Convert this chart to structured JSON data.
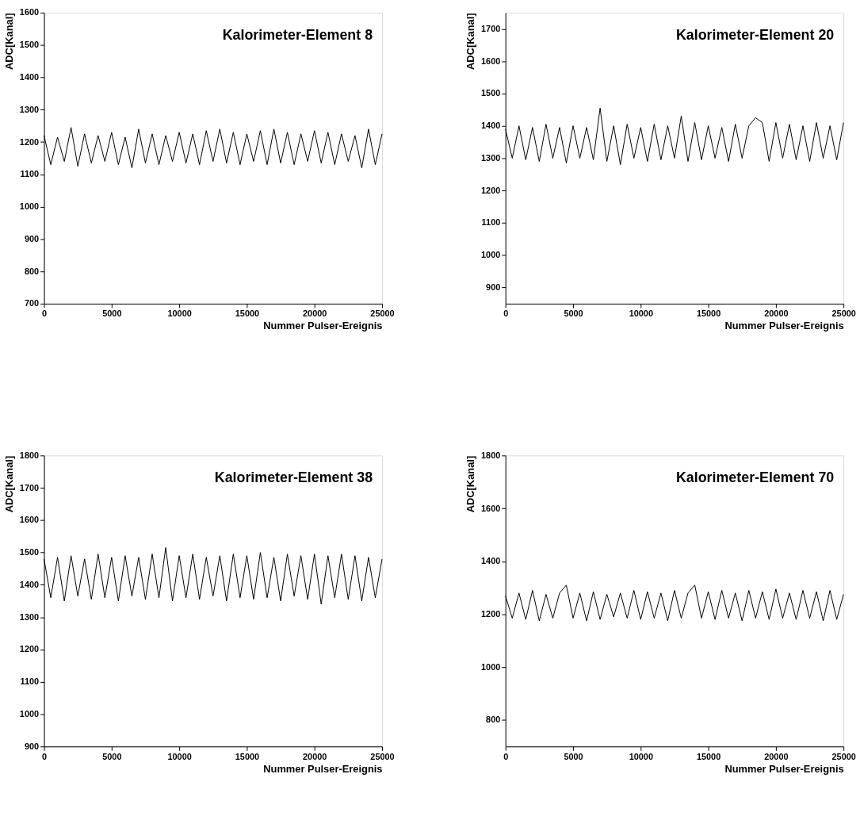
{
  "chart_data": [
    {
      "type": "line",
      "title": "Kalorimeter-Element 8",
      "xlabel": "Nummer Pulser-Ereignis",
      "ylabel": "ADC[Kanal]",
      "xlim": [
        0,
        25000
      ],
      "ylim": [
        700,
        1600
      ],
      "xticks": [
        0,
        5000,
        10000,
        15000,
        20000,
        25000
      ],
      "yticks": [
        700,
        800,
        900,
        1000,
        1100,
        1200,
        1300,
        1400,
        1500,
        1600
      ],
      "grid": false,
      "x": [
        0,
        500,
        1000,
        1500,
        2000,
        2500,
        3000,
        3500,
        4000,
        4500,
        5000,
        5500,
        6000,
        6500,
        7000,
        7500,
        8000,
        8500,
        9000,
        9500,
        10000,
        10500,
        11000,
        11500,
        12000,
        12500,
        13000,
        13500,
        14000,
        14500,
        15000,
        15500,
        16000,
        16500,
        17000,
        17500,
        18000,
        18500,
        19000,
        19500,
        20000,
        20500,
        21000,
        21500,
        22000,
        22500,
        23000,
        23500,
        24000,
        24500,
        25000
      ],
      "series": [
        {
          "color": "#000000",
          "values": [
            1220,
            1130,
            1215,
            1140,
            1245,
            1125,
            1225,
            1135,
            1220,
            1140,
            1230,
            1130,
            1215,
            1120,
            1240,
            1135,
            1225,
            1130,
            1220,
            1140,
            1230,
            1135,
            1225,
            1130,
            1235,
            1140,
            1240,
            1135,
            1230,
            1130,
            1225,
            1140,
            1235,
            1130,
            1240,
            1135,
            1230,
            1130,
            1225,
            1140,
            1235,
            1135,
            1230,
            1130,
            1225,
            1140,
            1220,
            1120,
            1240,
            1130,
            1225
          ]
        }
      ]
    },
    {
      "type": "line",
      "title": "Kalorimeter-Element 20",
      "xlabel": "Nummer Pulser-Ereignis",
      "ylabel": "ADC[Kanal]",
      "xlim": [
        0,
        25000
      ],
      "ylim": [
        850,
        1750
      ],
      "xticks": [
        0,
        5000,
        10000,
        15000,
        20000,
        25000
      ],
      "yticks": [
        900,
        1000,
        1100,
        1200,
        1300,
        1400,
        1500,
        1600,
        1700
      ],
      "grid": false,
      "x": [
        0,
        500,
        1000,
        1500,
        2000,
        2500,
        3000,
        3500,
        4000,
        4500,
        5000,
        5500,
        6000,
        6500,
        7000,
        7500,
        8000,
        8500,
        9000,
        9500,
        10000,
        10500,
        11000,
        11500,
        12000,
        12500,
        13000,
        13500,
        14000,
        14500,
        15000,
        15500,
        16000,
        16500,
        17000,
        17500,
        18000,
        18500,
        19000,
        19500,
        20000,
        20500,
        21000,
        21500,
        22000,
        22500,
        23000,
        23500,
        24000,
        24500,
        25000
      ],
      "series": [
        {
          "color": "#000000",
          "values": [
            1390,
            1300,
            1400,
            1295,
            1395,
            1290,
            1405,
            1300,
            1395,
            1285,
            1400,
            1300,
            1395,
            1295,
            1455,
            1290,
            1400,
            1280,
            1405,
            1300,
            1395,
            1290,
            1405,
            1295,
            1400,
            1300,
            1430,
            1290,
            1410,
            1295,
            1400,
            1300,
            1395,
            1290,
            1405,
            1300,
            1400,
            1425,
            1410,
            1290,
            1410,
            1300,
            1405,
            1295,
            1400,
            1290,
            1410,
            1300,
            1400,
            1295,
            1410
          ]
        }
      ]
    },
    {
      "type": "line",
      "title": "Kalorimeter-Element 38",
      "xlabel": "Nummer Pulser-Ereignis",
      "ylabel": "ADC[Kanal]",
      "xlim": [
        0,
        25000
      ],
      "ylim": [
        900,
        1800
      ],
      "xticks": [
        0,
        5000,
        10000,
        15000,
        20000,
        25000
      ],
      "yticks": [
        900,
        1000,
        1100,
        1200,
        1300,
        1400,
        1500,
        1600,
        1700,
        1800
      ],
      "grid": false,
      "x": [
        0,
        500,
        1000,
        1500,
        2000,
        2500,
        3000,
        3500,
        4000,
        4500,
        5000,
        5500,
        6000,
        6500,
        7000,
        7500,
        8000,
        8500,
        9000,
        9500,
        10000,
        10500,
        11000,
        11500,
        12000,
        12500,
        13000,
        13500,
        14000,
        14500,
        15000,
        15500,
        16000,
        16500,
        17000,
        17500,
        18000,
        18500,
        19000,
        19500,
        20000,
        20500,
        21000,
        21500,
        22000,
        22500,
        23000,
        23500,
        24000,
        24500,
        25000
      ],
      "series": [
        {
          "color": "#000000",
          "values": [
            1480,
            1360,
            1485,
            1350,
            1490,
            1365,
            1480,
            1355,
            1495,
            1360,
            1485,
            1350,
            1490,
            1365,
            1485,
            1355,
            1495,
            1360,
            1515,
            1350,
            1490,
            1360,
            1495,
            1355,
            1485,
            1365,
            1490,
            1350,
            1495,
            1360,
            1490,
            1355,
            1500,
            1360,
            1485,
            1350,
            1495,
            1365,
            1490,
            1355,
            1495,
            1340,
            1490,
            1360,
            1495,
            1355,
            1490,
            1350,
            1485,
            1360,
            1480
          ]
        }
      ]
    },
    {
      "type": "line",
      "title": "Kalorimeter-Element 70",
      "xlabel": "Nummer Pulser-Ereignis",
      "ylabel": "ADC[Kanal]",
      "xlim": [
        0,
        25000
      ],
      "ylim": [
        700,
        1800
      ],
      "xticks": [
        0,
        5000,
        10000,
        15000,
        20000,
        25000
      ],
      "yticks": [
        800,
        1000,
        1200,
        1400,
        1600,
        1800
      ],
      "grid": false,
      "x": [
        0,
        500,
        1000,
        1500,
        2000,
        2500,
        3000,
        3500,
        4000,
        4500,
        5000,
        5500,
        6000,
        6500,
        7000,
        7500,
        8000,
        8500,
        9000,
        9500,
        10000,
        10500,
        11000,
        11500,
        12000,
        12500,
        13000,
        13500,
        14000,
        14500,
        15000,
        15500,
        16000,
        16500,
        17000,
        17500,
        18000,
        18500,
        19000,
        19500,
        20000,
        20500,
        21000,
        21500,
        22000,
        22500,
        23000,
        23500,
        24000,
        24500,
        25000
      ],
      "series": [
        {
          "color": "#000000",
          "values": [
            1270,
            1185,
            1280,
            1180,
            1290,
            1175,
            1275,
            1185,
            1280,
            1310,
            1185,
            1280,
            1175,
            1285,
            1180,
            1275,
            1190,
            1280,
            1185,
            1290,
            1180,
            1285,
            1185,
            1280,
            1175,
            1290,
            1185,
            1280,
            1310,
            1185,
            1285,
            1180,
            1290,
            1185,
            1280,
            1175,
            1290,
            1185,
            1285,
            1180,
            1295,
            1185,
            1280,
            1180,
            1290,
            1185,
            1285,
            1175,
            1290,
            1180,
            1275
          ]
        }
      ]
    }
  ]
}
